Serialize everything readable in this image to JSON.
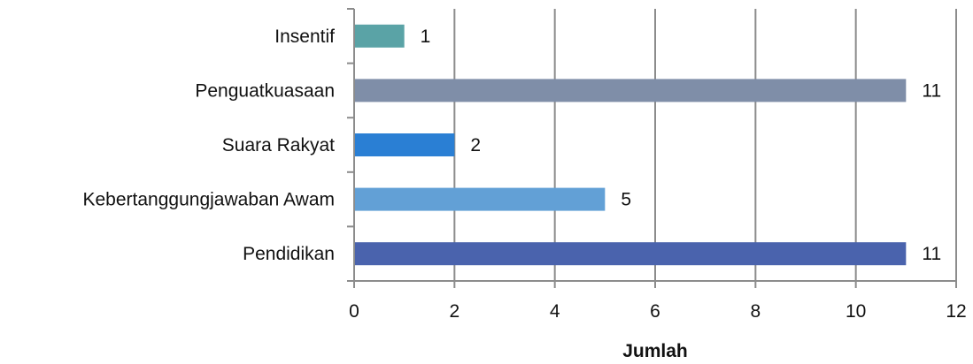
{
  "chart_data": {
    "type": "bar",
    "orientation": "horizontal",
    "categories": [
      "Insentif",
      "Penguatkuasaan",
      "Suara Rakyat",
      "Kebertanggungjawaban Awam",
      "Pendidikan"
    ],
    "values": [
      1,
      11,
      2,
      5,
      11
    ],
    "colors": [
      "#5aa3a6",
      "#7f8ea8",
      "#2a7fd4",
      "#62a0d6",
      "#4a63ad"
    ],
    "xlabel": "Jumlah",
    "ylabel": "",
    "xlim": [
      0,
      12
    ],
    "xticks": [
      0,
      2,
      4,
      6,
      8,
      10,
      12
    ],
    "grid": "vertical",
    "data_labels": true
  }
}
